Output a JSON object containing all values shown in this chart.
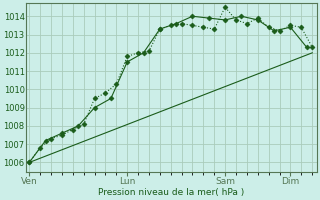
{
  "xlabel": "Pression niveau de la mer( hPa )",
  "bg_color": "#cceee8",
  "grid_color": "#aaccbb",
  "line_color": "#1a5c1a",
  "border_color": "#557755",
  "ylim": [
    1005.5,
    1014.7
  ],
  "yticks": [
    1006,
    1007,
    1008,
    1009,
    1010,
    1011,
    1012,
    1013,
    1014
  ],
  "day_labels": [
    "Ven",
    "Lun",
    "Sam",
    "Dim"
  ],
  "day_positions": [
    0,
    3,
    6,
    8
  ],
  "xlim": [
    -0.1,
    8.8
  ],
  "series1_x": [
    0,
    0.33,
    0.67,
    1.0,
    1.33,
    1.67,
    2.0,
    2.33,
    2.67,
    3.0,
    3.33,
    3.67,
    4.0,
    4.33,
    4.67,
    5.0,
    5.33,
    5.67,
    6.0,
    6.33,
    6.67,
    7.0,
    7.33,
    7.67,
    8.0,
    8.33,
    8.67
  ],
  "series1_y": [
    1006.0,
    1006.8,
    1007.3,
    1007.5,
    1007.8,
    1008.1,
    1009.5,
    1009.8,
    1010.3,
    1011.8,
    1012.0,
    1012.1,
    1013.3,
    1013.5,
    1013.6,
    1013.5,
    1013.4,
    1013.3,
    1014.5,
    1013.8,
    1013.6,
    1013.9,
    1013.4,
    1013.2,
    1013.5,
    1013.4,
    1012.3
  ],
  "series2_x": [
    0,
    0.5,
    1.0,
    1.5,
    2.0,
    2.5,
    3.0,
    3.5,
    4.0,
    4.5,
    5.0,
    5.5,
    6.0,
    6.5,
    7.0,
    7.5,
    8.0,
    8.5
  ],
  "series2_y": [
    1006.0,
    1007.2,
    1007.6,
    1008.0,
    1009.0,
    1009.5,
    1011.5,
    1012.0,
    1013.3,
    1013.6,
    1014.0,
    1013.9,
    1013.8,
    1014.0,
    1013.8,
    1013.2,
    1013.4,
    1012.3
  ],
  "series3_x": [
    0,
    8.67
  ],
  "series3_y": [
    1006.0,
    1012.0
  ]
}
